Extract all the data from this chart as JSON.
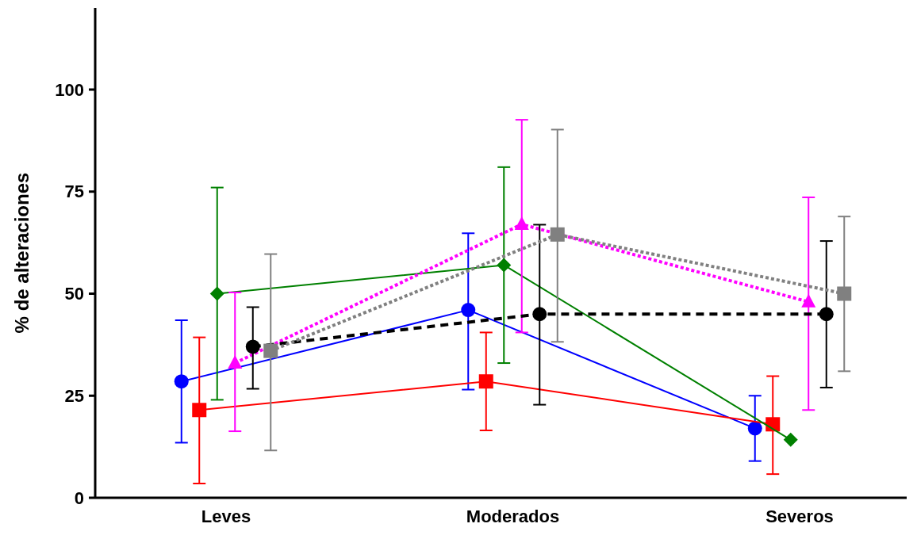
{
  "chart_data": {
    "type": "line",
    "ylabel": "% de alteraciones",
    "categories": [
      "Leves",
      "Moderados",
      "Severos"
    ],
    "ylim": [
      0,
      120
    ],
    "yticks": [
      0,
      25,
      50,
      75,
      100
    ],
    "grid": false,
    "series": [
      {
        "color": "#0000ff",
        "marker": "circle",
        "line_style": "solid",
        "values": [
          28.5,
          46,
          17
        ],
        "errors": [
          [
            13.5,
            43.5
          ],
          [
            26.5,
            64.8
          ],
          [
            9,
            25
          ]
        ]
      },
      {
        "color": "#ff0000",
        "marker": "square",
        "line_style": "solid",
        "values": [
          21.5,
          28.5,
          18
        ],
        "errors": [
          [
            3.5,
            39.3
          ],
          [
            16.5,
            40.5
          ],
          [
            5.8,
            29.8
          ]
        ]
      },
      {
        "color": "#008000",
        "marker": "diamond",
        "line_style": "solid",
        "values": [
          50,
          57,
          14.2
        ],
        "errors": [
          [
            24,
            76
          ],
          [
            33,
            81
          ],
          null
        ]
      },
      {
        "color": "#ff00ff",
        "marker": "triangle",
        "line_style": "dotted",
        "values": [
          33,
          67,
          48
        ],
        "errors": [
          [
            16.3,
            50.3
          ],
          [
            40.5,
            92.6
          ],
          [
            21.5,
            73.6
          ]
        ]
      },
      {
        "color": "#000000",
        "marker": "circle",
        "line_style": "dashed",
        "values": [
          37,
          45,
          45
        ],
        "errors": [
          [
            26.7,
            46.7
          ],
          [
            22.8,
            66.9
          ],
          [
            27,
            62.9
          ]
        ]
      },
      {
        "color": "#808080",
        "marker": "square",
        "line_style": "dotted",
        "values": [
          36,
          64.5,
          50
        ],
        "errors": [
          [
            11.6,
            59.7
          ],
          [
            38.2,
            90.2
          ],
          [
            31,
            68.9
          ]
        ]
      }
    ]
  }
}
